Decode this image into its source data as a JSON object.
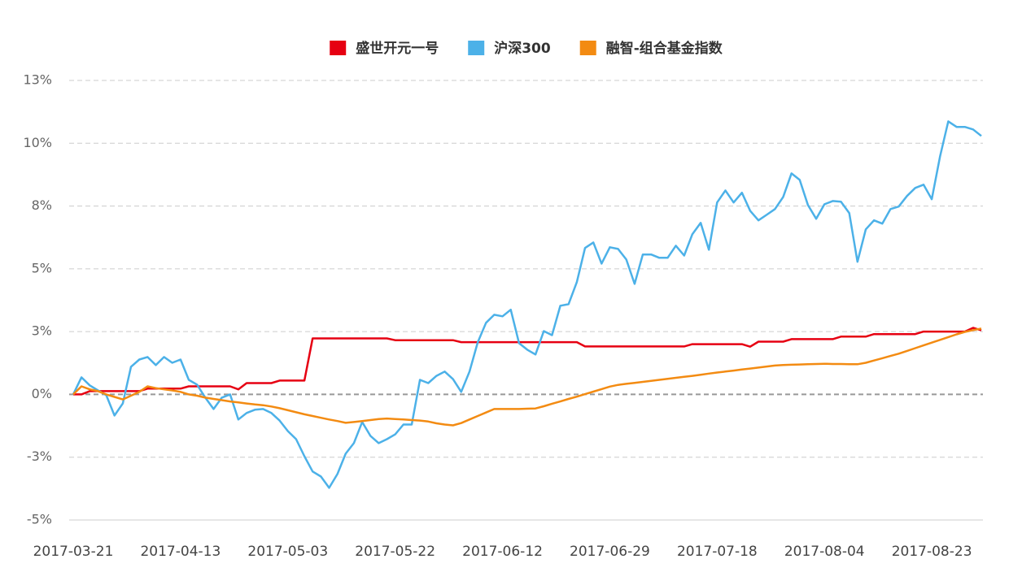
{
  "chart_data": {
    "type": "line",
    "categories": [
      "2017-03-21",
      null,
      null,
      null,
      null,
      null,
      null,
      null,
      null,
      null,
      null,
      null,
      null,
      "2017-04-13",
      null,
      null,
      null,
      null,
      null,
      null,
      null,
      null,
      null,
      null,
      null,
      null,
      "2017-05-03",
      null,
      null,
      null,
      null,
      null,
      null,
      null,
      null,
      null,
      null,
      null,
      null,
      "2017-05-22",
      null,
      null,
      null,
      null,
      null,
      null,
      null,
      null,
      null,
      null,
      null,
      null,
      "2017-06-12",
      null,
      null,
      null,
      null,
      null,
      null,
      null,
      null,
      null,
      null,
      null,
      null,
      "2017-06-29",
      null,
      null,
      null,
      null,
      null,
      null,
      null,
      null,
      null,
      null,
      null,
      null,
      "2017-07-18",
      null,
      null,
      null,
      null,
      null,
      null,
      null,
      null,
      null,
      null,
      null,
      null,
      "2017-08-04",
      null,
      null,
      null,
      null,
      null,
      null,
      null,
      null,
      null,
      null,
      null,
      null,
      "2017-08-23",
      null,
      null,
      null,
      null,
      null,
      null
    ],
    "series": [
      {
        "name": "盛世开元一号",
        "color": "#e60012",
        "values": [
          0,
          0,
          0.13,
          0.13,
          0.13,
          0.13,
          0.13,
          0.13,
          0.13,
          0.23,
          0.23,
          0.23,
          0.23,
          0.23,
          0.32,
          0.32,
          0.32,
          0.32,
          0.32,
          0.32,
          0.2,
          0.45,
          0.45,
          0.45,
          0.45,
          0.55,
          0.55,
          0.55,
          0.55,
          2.23,
          2.23,
          2.23,
          2.23,
          2.23,
          2.23,
          2.23,
          2.23,
          2.23,
          2.23,
          2.16,
          2.16,
          2.16,
          2.16,
          2.16,
          2.16,
          2.16,
          2.16,
          2.08,
          2.08,
          2.08,
          2.08,
          2.08,
          2.08,
          2.08,
          2.08,
          2.08,
          2.08,
          2.08,
          2.08,
          2.08,
          2.08,
          2.08,
          1.91,
          1.91,
          1.91,
          1.91,
          1.91,
          1.91,
          1.91,
          1.91,
          1.91,
          1.91,
          1.91,
          1.91,
          1.91,
          2.0,
          2.0,
          2.0,
          2.0,
          2.0,
          2.0,
          2.0,
          1.9,
          2.1,
          2.1,
          2.1,
          2.1,
          2.2,
          2.2,
          2.2,
          2.2,
          2.2,
          2.2,
          2.3,
          2.3,
          2.3,
          2.3,
          2.4,
          2.4,
          2.4,
          2.4,
          2.4,
          2.4,
          2.5,
          2.5,
          2.5,
          2.5,
          2.5,
          2.5,
          2.65,
          2.55
        ]
      },
      {
        "name": "沪深300",
        "color": "#4cb1e8",
        "values": [
          0,
          0.68,
          0.36,
          0.16,
          -0.03,
          -0.84,
          -0.36,
          1.1,
          1.39,
          1.49,
          1.17,
          1.49,
          1.26,
          1.39,
          0.58,
          0.39,
          -0.13,
          -0.58,
          -0.13,
          0,
          -1.0,
          -0.74,
          -0.61,
          -0.58,
          -0.74,
          -1.04,
          -1.46,
          -1.78,
          -2.46,
          -3.07,
          -3.27,
          -3.72,
          -3.17,
          -2.36,
          -1.94,
          -1.1,
          -1.65,
          -1.94,
          -1.78,
          -1.59,
          -1.2,
          -1.2,
          0.58,
          0.45,
          0.74,
          0.91,
          0.61,
          0.1,
          0.91,
          2.07,
          2.85,
          3.17,
          3.11,
          3.37,
          2.04,
          1.78,
          1.59,
          2.52,
          2.36,
          3.53,
          3.59,
          4.47,
          5.83,
          6.05,
          5.21,
          5.86,
          5.79,
          5.37,
          4.4,
          5.57,
          5.57,
          5.44,
          5.44,
          5.92,
          5.53,
          6.38,
          6.83,
          5.76,
          7.64,
          8.12,
          7.64,
          8.03,
          7.31,
          6.93,
          7.15,
          7.38,
          7.86,
          8.8,
          8.54,
          7.54,
          6.99,
          7.57,
          7.7,
          7.67,
          7.22,
          5.28,
          6.57,
          6.93,
          6.8,
          7.38,
          7.48,
          7.9,
          8.22,
          8.35,
          7.77,
          9.48,
          10.87,
          10.65,
          10.65,
          10.55,
          10.29
        ]
      },
      {
        "name": "融智-组合基金指数",
        "color": "#f38b12",
        "values": [
          0,
          0.32,
          0.2,
          0.13,
          0,
          -0.1,
          -0.2,
          -0.05,
          0.1,
          0.32,
          0.25,
          0.2,
          0.16,
          0.1,
          0,
          -0.05,
          -0.13,
          -0.18,
          -0.23,
          -0.28,
          -0.32,
          -0.36,
          -0.4,
          -0.43,
          -0.48,
          -0.55,
          -0.63,
          -0.71,
          -0.79,
          -0.86,
          -0.93,
          -1.0,
          -1.06,
          -1.13,
          -1.1,
          -1.06,
          -1.02,
          -0.98,
          -0.96,
          -0.98,
          -1.0,
          -1.02,
          -1.04,
          -1.08,
          -1.15,
          -1.2,
          -1.23,
          -1.14,
          -1.0,
          -0.86,
          -0.72,
          -0.58,
          -0.58,
          -0.58,
          -0.58,
          -0.57,
          -0.56,
          -0.47,
          -0.37,
          -0.28,
          -0.18,
          -0.09,
          0.01,
          0.11,
          0.21,
          0.31,
          0.38,
          0.42,
          0.46,
          0.5,
          0.54,
          0.58,
          0.62,
          0.66,
          0.7,
          0.74,
          0.78,
          0.83,
          0.87,
          0.91,
          0.95,
          0.99,
          1.03,
          1.07,
          1.11,
          1.15,
          1.17,
          1.18,
          1.19,
          1.2,
          1.21,
          1.22,
          1.21,
          1.21,
          1.2,
          1.2,
          1.26,
          1.35,
          1.44,
          1.53,
          1.62,
          1.73,
          1.84,
          1.95,
          2.06,
          2.17,
          2.28,
          2.39,
          2.49,
          2.56,
          2.62
        ]
      }
    ],
    "ylim": [
      -5,
      12.5
    ],
    "yticks": [
      {
        "value": -5,
        "label": "-5%"
      },
      {
        "value": -2.5,
        "label": "-3%"
      },
      {
        "value": 0,
        "label": "0%"
      },
      {
        "value": 2.5,
        "label": "3%"
      },
      {
        "value": 5,
        "label": "5%"
      },
      {
        "value": 7.5,
        "label": "8%"
      },
      {
        "value": 10,
        "label": "10%"
      },
      {
        "value": 12.5,
        "label": "13%"
      }
    ],
    "grid": true,
    "legend": "top"
  }
}
